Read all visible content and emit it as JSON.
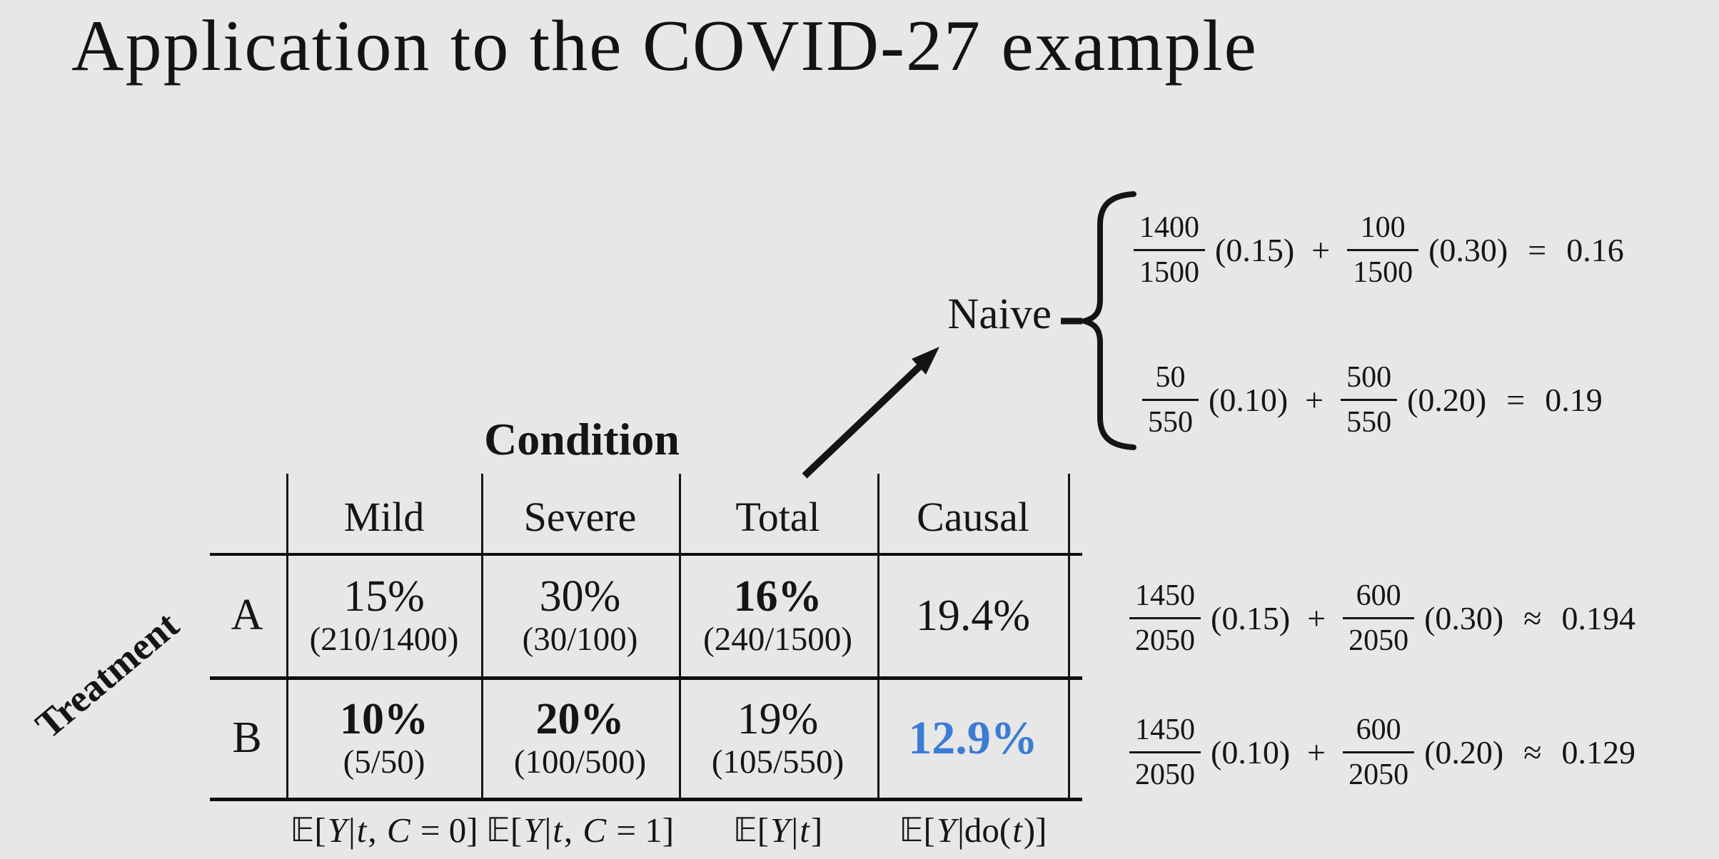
{
  "slide": {
    "title": "Application to the COVID-27 example"
  },
  "colors": {
    "background": "#e8e7e7",
    "text": "#151515",
    "accent_blue": "#3b7cd4"
  },
  "table": {
    "condition_label": "Condition",
    "treatment_label": "Treatment",
    "columns": [
      "Mild",
      "Severe",
      "Total",
      "Causal"
    ],
    "rows": [
      {
        "label": "A",
        "cells": [
          {
            "value": "15%",
            "detail": "(210/1400)"
          },
          {
            "value": "30%",
            "detail": "(30/100)"
          },
          {
            "value": "16%",
            "detail": "(240/1500)"
          },
          {
            "value": "19.4%",
            "detail": ""
          }
        ]
      },
      {
        "label": "B",
        "cells": [
          {
            "value": "10%",
            "detail": "(5/50)"
          },
          {
            "value": "20%",
            "detail": "(100/500)"
          },
          {
            "value": "19%",
            "detail": "(105/550)"
          },
          {
            "value": "12.9%",
            "detail": ""
          }
        ]
      }
    ],
    "footer_formulas": [
      [
        [
          "𝔼",
          2
        ],
        [
          "[",
          0
        ],
        [
          "Y",
          1
        ],
        [
          "|",
          0
        ],
        [
          "t",
          1
        ],
        [
          ", ",
          0
        ],
        [
          "C",
          1
        ],
        [
          " = 0]",
          0
        ]
      ],
      [
        [
          "𝔼",
          2
        ],
        [
          "[",
          0
        ],
        [
          "Y",
          1
        ],
        [
          "|",
          0
        ],
        [
          "t",
          1
        ],
        [
          ", ",
          0
        ],
        [
          "C",
          1
        ],
        [
          " = 1]",
          0
        ]
      ],
      [
        [
          "𝔼",
          2
        ],
        [
          "[",
          0
        ],
        [
          "Y",
          1
        ],
        [
          "|",
          0
        ],
        [
          "t",
          1
        ],
        [
          "]",
          0
        ]
      ],
      [
        [
          "𝔼",
          2
        ],
        [
          "[",
          0
        ],
        [
          "Y",
          1
        ],
        [
          "|",
          0
        ],
        [
          "do(",
          0
        ],
        [
          "t",
          1
        ],
        [
          ")]",
          0
        ]
      ]
    ]
  },
  "naive": {
    "label": "Naive",
    "equations": [
      {
        "num1": "1400",
        "den1": "1500",
        "factor1": "(0.15)",
        "op": "+",
        "num2": "100",
        "den2": "1500",
        "factor2": "(0.30)",
        "rel": "=",
        "result": "0.16"
      },
      {
        "num1": "50",
        "den1": "550",
        "factor1": "(0.10)",
        "op": "+",
        "num2": "500",
        "den2": "550",
        "factor2": "(0.20)",
        "rel": "=",
        "result": "0.19"
      }
    ]
  },
  "causal": {
    "equations": [
      {
        "num1": "1450",
        "den1": "2050",
        "factor1": "(0.15)",
        "op": "+",
        "num2": "600",
        "den2": "2050",
        "factor2": "(0.30)",
        "rel": "≈",
        "result": "0.194"
      },
      {
        "num1": "1450",
        "den1": "2050",
        "factor1": "(0.10)",
        "op": "+",
        "num2": "600",
        "den2": "2050",
        "factor2": "(0.20)",
        "rel": "≈",
        "result": "0.129"
      }
    ]
  }
}
